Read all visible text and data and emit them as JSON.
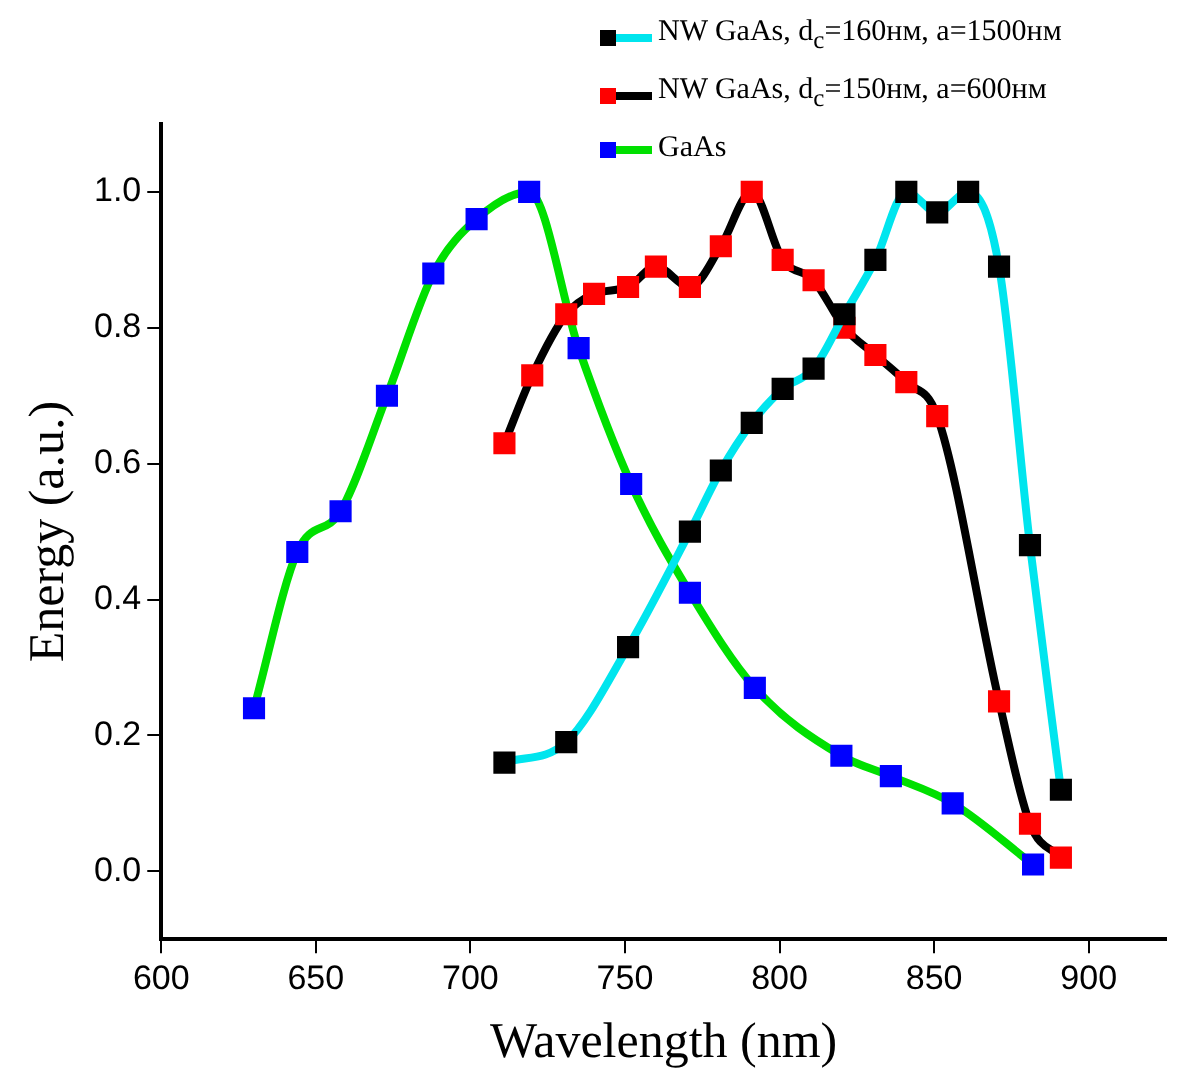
{
  "chart_data": {
    "type": "line",
    "xlabel": "Wavelength (nm)",
    "ylabel": "Energy (a.u.)",
    "xlim": [
      600,
      925
    ],
    "xticks": [
      600,
      650,
      700,
      750,
      800,
      850,
      900
    ],
    "ylim": [
      -0.1,
      1.1
    ],
    "yticks": [
      {
        "value": 0,
        "label": "0.0"
      },
      0.2,
      0.4,
      0.6,
      0.8,
      {
        "value": 1,
        "label": "1.0"
      }
    ],
    "grid": false,
    "legend": "top right",
    "marker": "square",
    "line_style": "solid",
    "series": [
      {
        "name": "NW GaAs, d$_{c}$=160нм, a=1500нм",
        "color": "#00e5ee",
        "colors": [
          "#000000",
          "#000000",
          "#000000",
          "#000000",
          "#000000",
          "#000000",
          "#000000",
          "#000000",
          "#000000",
          "#000000",
          "#000000",
          "#000000",
          "#000000",
          "#000000",
          "#000000",
          "#000000"
        ],
        "x": [
          711,
          731,
          751,
          771,
          781,
          791,
          801,
          811,
          821,
          831,
          841,
          851,
          861,
          871,
          881,
          891
        ],
        "values": [
          0.16,
          0.19,
          0.33,
          0.5,
          0.59,
          0.66,
          0.71,
          0.74,
          0.82,
          0.9,
          1.0,
          0.97,
          1.0,
          0.89,
          0.48,
          0.12
        ]
      },
      {
        "name": "NW GaAs, d$_{c}$=150нм, a=600нм",
        "color": "#000000",
        "colors": [
          "#ff0000",
          "#ff0000",
          "#ff0000",
          "#ff0000",
          "#ff0000",
          "#ff0000",
          "#ff0000",
          "#ff0000",
          "#ff0000",
          "#ff0000",
          "#ff0000",
          "#ff0000",
          "#ff0000",
          "#ff0000",
          "#ff0000",
          "#ff0000",
          "#ff0000",
          "#ff0000"
        ],
        "x": [
          711,
          720,
          731,
          740,
          751,
          760,
          771,
          781,
          791,
          801,
          811,
          821,
          831,
          841,
          851,
          871,
          881,
          891
        ],
        "values": [
          0.63,
          0.73,
          0.82,
          0.85,
          0.86,
          0.89,
          0.86,
          0.92,
          1.0,
          0.9,
          0.87,
          0.8,
          0.76,
          0.72,
          0.67,
          0.25,
          0.07,
          0.02
        ]
      },
      {
        "name": "GaAs",
        "color": "#00e000",
        "colors": [
          "#0000ff",
          "#0000ff",
          "#0000ff",
          "#0000ff",
          "#0000ff",
          "#0000ff",
          "#0000ff",
          "#0000ff",
          "#0000ff",
          "#0000ff",
          "#0000ff",
          "#0000ff",
          "#0000ff",
          "#0000ff",
          "#0000ff"
        ],
        "x": [
          630,
          644,
          658,
          673,
          688,
          702,
          719,
          735,
          752,
          771,
          792,
          820,
          836,
          856,
          882
        ],
        "values": [
          0.24,
          0.47,
          0.53,
          0.7,
          0.88,
          0.96,
          1.0,
          0.77,
          0.57,
          0.41,
          0.27,
          0.17,
          0.14,
          0.1,
          0.01
        ]
      }
    ]
  }
}
